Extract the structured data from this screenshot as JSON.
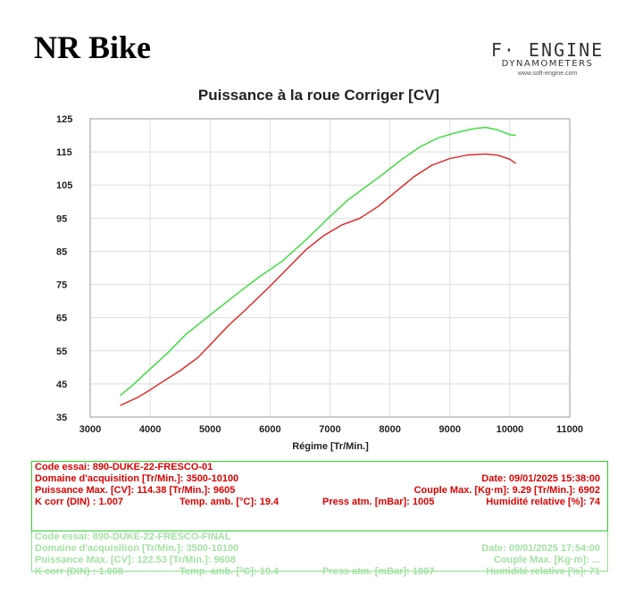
{
  "header": {
    "brand": "NR Bike",
    "logo_main": "F· ENGINE",
    "logo_sub": "DYNAMOMETERS",
    "logo_url": "www.soft-engine.com"
  },
  "colors": {
    "run1": "#e02020",
    "run2": "#33dd33",
    "grid": "#dddddd",
    "panel_border": "#33cc33"
  },
  "chart_data": {
    "type": "line",
    "title": "Puissance à la roue Corriger [CV]",
    "xlabel": "Régime [Tr/Min.]",
    "ylabel": "",
    "xlim": [
      3000,
      11000
    ],
    "ylim": [
      35,
      125
    ],
    "xticks": [
      3000,
      4000,
      5000,
      6000,
      7000,
      8000,
      9000,
      10000,
      11000
    ],
    "yticks": [
      35,
      45,
      55,
      65,
      75,
      85,
      95,
      105,
      115,
      125
    ],
    "grid": true,
    "series": [
      {
        "name": "890-DUKE-22-FRESCO-01",
        "color": "#e02020",
        "x": [
          3500,
          3800,
          4000,
          4200,
          4500,
          4800,
          5000,
          5300,
          5600,
          6000,
          6300,
          6600,
          6900,
          7200,
          7500,
          7800,
          8100,
          8400,
          8700,
          9000,
          9300,
          9600,
          9800,
          10000,
          10100
        ],
        "y": [
          38.5,
          41,
          43.2,
          45.6,
          49,
          53,
          56.8,
          62.5,
          67.5,
          74.5,
          80,
          85.5,
          89.8,
          93,
          95,
          98.5,
          103,
          107.5,
          111,
          113,
          114.1,
          114.38,
          114,
          112.8,
          111.5
        ]
      },
      {
        "name": "890-DUKE-22-FRESCO-FINAL",
        "color": "#33dd33",
        "x": [
          3500,
          3700,
          4000,
          4300,
          4600,
          5000,
          5400,
          5800,
          6200,
          6600,
          7000,
          7300,
          7600,
          7900,
          8200,
          8500,
          8800,
          9100,
          9400,
          9600,
          9800,
          10000,
          10100
        ],
        "y": [
          41.5,
          44.5,
          49.5,
          54.5,
          60,
          65.8,
          71.5,
          77,
          82,
          88.5,
          95.5,
          100.5,
          104.5,
          108.5,
          112.8,
          116.5,
          119.2,
          120.8,
          122,
          122.4,
          121.6,
          120.2,
          120
        ]
      }
    ]
  },
  "run1": {
    "code": "Code essai: 890-DUKE-22-FRESCO-01",
    "range": "Domaine d'acquisition [Tr/Min.]: 3500-10100",
    "date": "Date: 09/01/2025   15:38:00",
    "power": "Puissance Max. [CV]: 114.38   [Tr/Min.]: 9605",
    "torque": "Couple Max. [Kg·m]: 9.29   [Tr/Min.]: 6902",
    "kcorr": "K corr  (DIN) : 1.007",
    "temp": "Temp. amb. [°C]: 19.4",
    "press": "Press atm. [mBar]: 1005",
    "humid": "Humidité relative [%]: 74"
  },
  "run2": {
    "code": "Code essai: 890-DUKE-22-FRESCO-FINAL",
    "range": "Domaine d'acquisition [Tr/Min.]: 3500-10100",
    "date": "Date: 09/01/2025   17:54:00",
    "power": "Puissance Max. [CV]: 122.53   [Tr/Min.]: 9608",
    "torque": "Couple Max. [Kg·m]: ...",
    "kcorr": "K corr  (DIN) : 1.008",
    "temp": "Temp. amb. [°C]: 19.4",
    "press": "Press atm. [mBar]: 1007",
    "humid": "Humidité relative [%]: 71"
  }
}
